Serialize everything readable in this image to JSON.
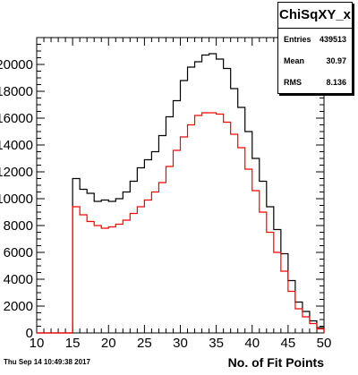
{
  "stats": {
    "title": "ChiSqXY_x",
    "rows": [
      {
        "label": "Entries",
        "value": "439513"
      },
      {
        "label": "Mean",
        "value": "30.97"
      },
      {
        "label": "RMS",
        "value": "8.136"
      }
    ]
  },
  "footer": {
    "date": "Thu Sep 14 10:49:38 2017"
  },
  "chart_data": {
    "type": "step",
    "xlabel": "No. of Fit Points",
    "ylabel": "",
    "xlim": [
      10,
      50
    ],
    "ylim": [
      0,
      22000
    ],
    "xticks": [
      10,
      15,
      20,
      25,
      30,
      35,
      40,
      45,
      50
    ],
    "yticks": [
      0,
      2000,
      4000,
      6000,
      8000,
      10000,
      12000,
      14000,
      16000,
      18000,
      20000
    ],
    "grid": false,
    "bin_edges": [
      15,
      16,
      17,
      18,
      19,
      20,
      21,
      22,
      23,
      24,
      25,
      26,
      27,
      28,
      29,
      30,
      31,
      32,
      33,
      34,
      35,
      36,
      37,
      38,
      39,
      40,
      41,
      42,
      43,
      44,
      45,
      46,
      47,
      48,
      49,
      50
    ],
    "series": [
      {
        "color": "#000000",
        "values": [
          11500,
          10700,
          10400,
          9800,
          9900,
          9800,
          10000,
          10500,
          11300,
          12300,
          12900,
          13500,
          14700,
          16100,
          17300,
          18800,
          19800,
          20200,
          20700,
          20800,
          20400,
          19700,
          18200,
          16800,
          15000,
          13000,
          11300,
          9400,
          7700,
          5900,
          3900,
          2300,
          1600,
          900,
          400
        ]
      },
      {
        "color": "#ff0000",
        "values": [
          9400,
          8800,
          8300,
          8000,
          7800,
          7900,
          8100,
          8400,
          8900,
          9400,
          9900,
          10500,
          11200,
          12400,
          13600,
          14600,
          15500,
          16200,
          16400,
          16400,
          16300,
          15700,
          14800,
          13800,
          12200,
          10600,
          9000,
          7500,
          6000,
          4600,
          3100,
          1800,
          1200,
          700,
          300
        ]
      }
    ]
  }
}
